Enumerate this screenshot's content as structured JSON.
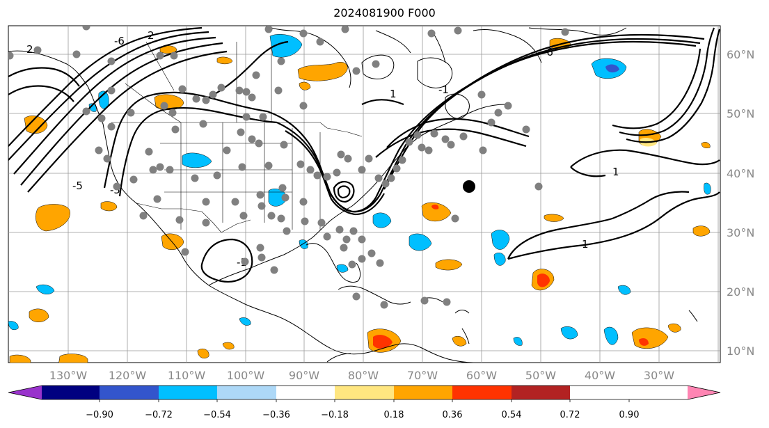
{
  "title": "2024081900 F000",
  "lat_labels": [
    "60°N",
    "50°N",
    "40°N",
    "30°N",
    "20°N",
    "10°N"
  ],
  "lon_labels": [
    "130°W",
    "120°W",
    "110°W",
    "100°W",
    "90°W",
    "80°W",
    "70°W",
    "60°W",
    "50°W",
    "40°W",
    "30°W"
  ],
  "colorbar": {
    "ticks": [
      "−0.90",
      "−0.72",
      "−0.54",
      "−0.36",
      "−0.18",
      "0.18",
      "0.36",
      "0.54",
      "0.72",
      "0.90"
    ],
    "colors": [
      "#9933cc",
      "#000080",
      "#3355cc",
      "#00bfff",
      "#add8f7",
      "#ffffff",
      "#ffe680",
      "#ffa500",
      "#ff3300",
      "#b22222",
      "#ff85b3"
    ]
  },
  "contour_labels": [
    "2",
    "-6",
    "-5",
    "-5",
    "2",
    "1",
    "-1",
    "1",
    "-1",
    "1",
    "-6"
  ],
  "colors": {
    "contour": "#000000",
    "station": "#808080",
    "marker": "#000000",
    "grid": "#999999"
  }
}
